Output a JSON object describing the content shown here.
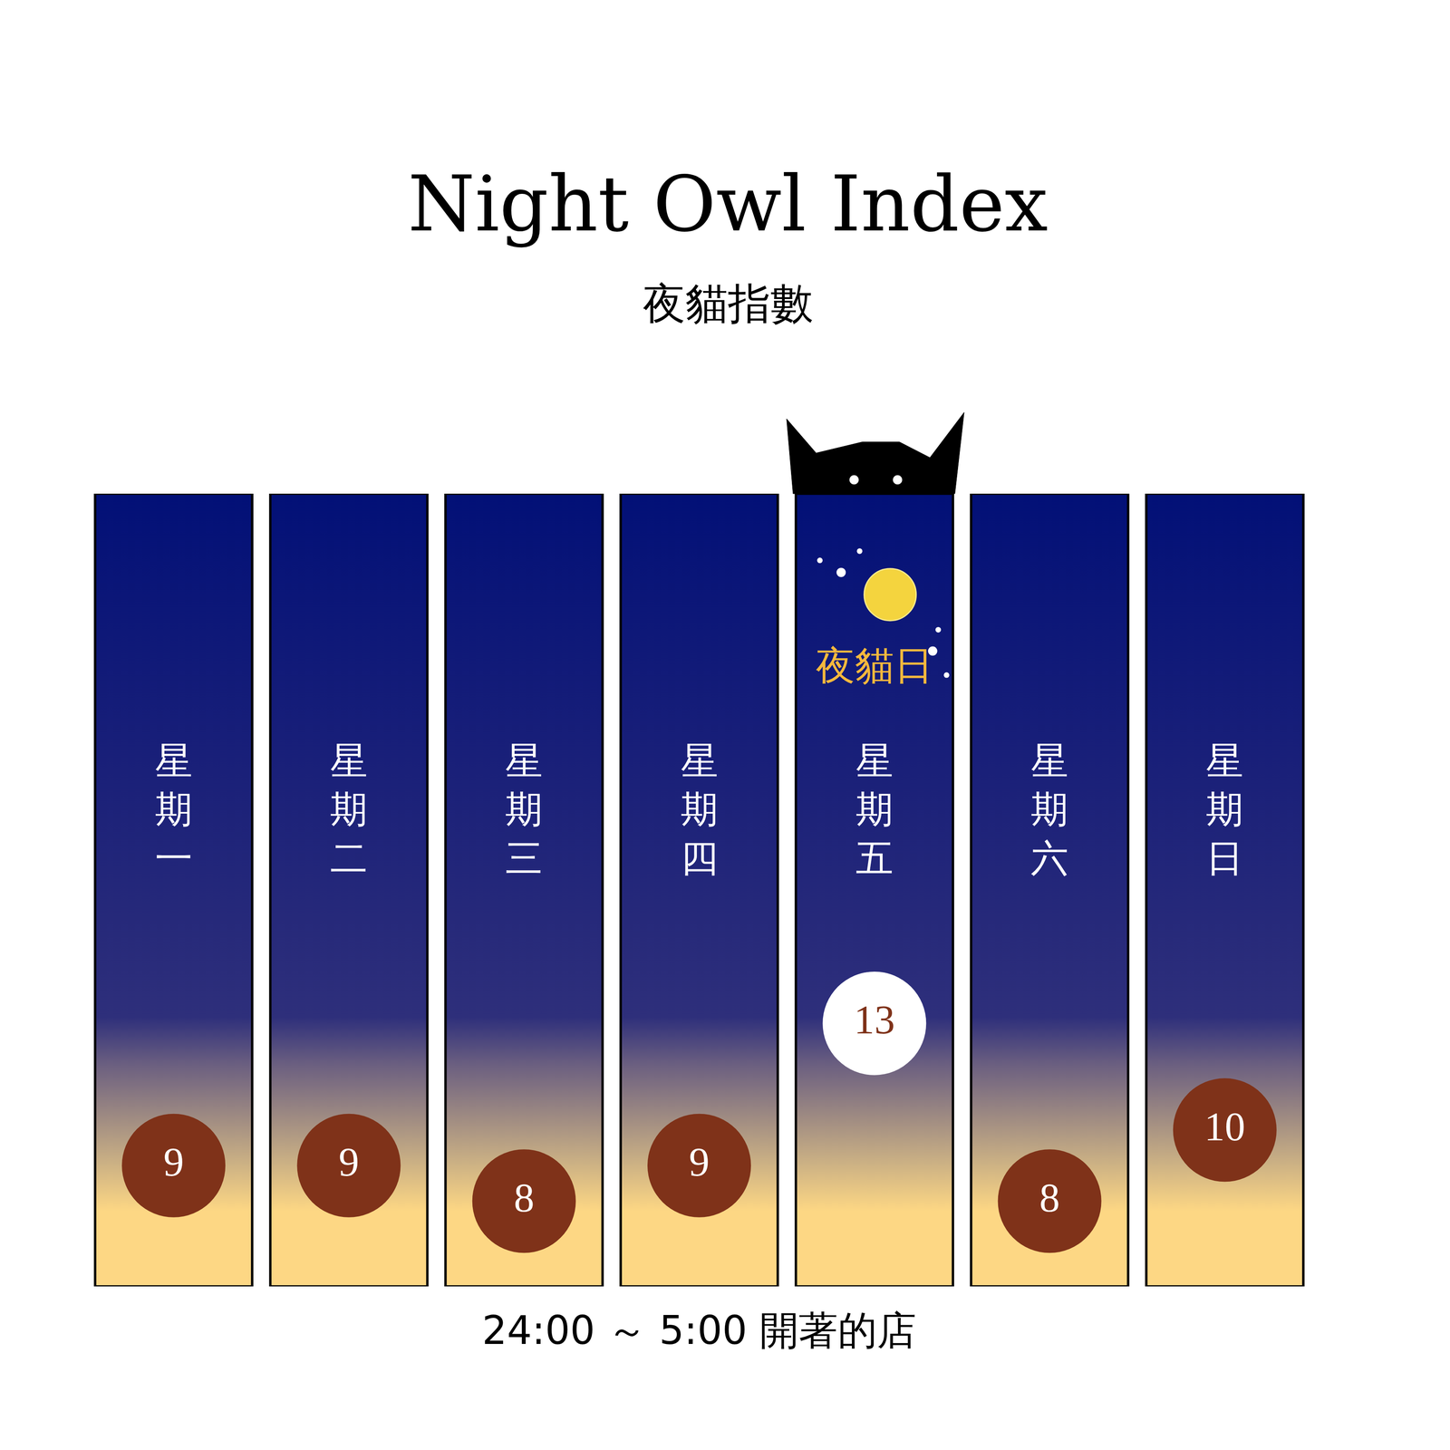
{
  "chart_data": {
    "type": "dot",
    "title": "Night Owl Index",
    "subtitle": "夜貓指數",
    "x_label": "24:00 ～ 5:00 開著的店",
    "categories": [
      "星期一",
      "星期二",
      "星期三",
      "星期四",
      "星期五",
      "星期六",
      "星期日"
    ],
    "values": [
      9,
      9,
      8,
      9,
      13,
      8,
      10
    ],
    "colors": [
      "#7f3219",
      "#7f3219",
      "#7f3219",
      "#7f3219",
      "#ffffff",
      "#7f3219",
      "#7f3219"
    ],
    "ylim": [
      5.6,
      27.9
    ],
    "yticks": [],
    "tick_labels": false,
    "data_labels": true,
    "annotations": [
      {
        "text": "夜貓日",
        "category": "星期五"
      }
    ]
  }
}
